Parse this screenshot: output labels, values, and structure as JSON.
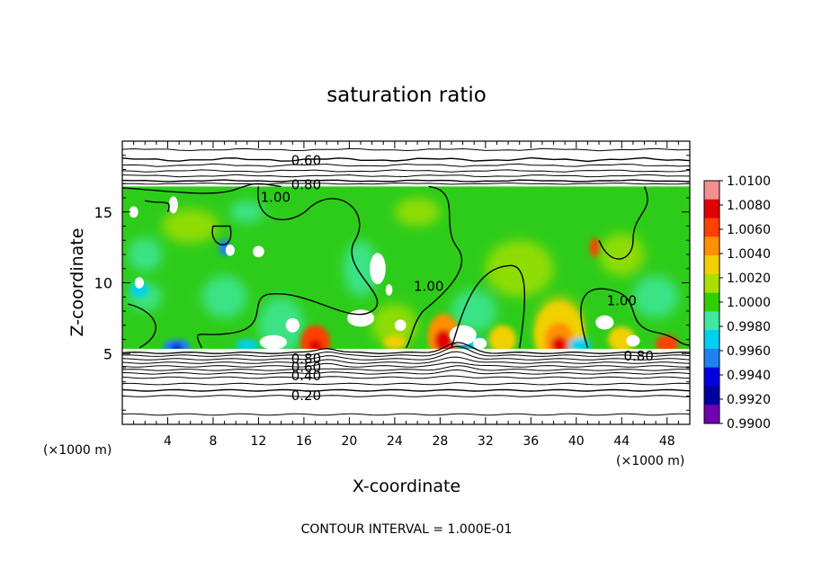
{
  "chart_data": {
    "type": "heatmap",
    "title": "saturation ratio",
    "xlabel": "X-coordinate",
    "ylabel": "Z-coordinate",
    "x_unit_left": "(×1000 m)",
    "x_unit_right": "(×1000 m)",
    "xlim": [
      0,
      50
    ],
    "ylim": [
      0,
      20
    ],
    "x_ticks": [
      4,
      8,
      12,
      16,
      20,
      24,
      28,
      32,
      36,
      40,
      44,
      48
    ],
    "y_ticks": [
      5,
      10,
      15
    ],
    "footer": "CONTOUR INTERVAL = 1.000E-01",
    "colorbar": {
      "min": 0.99,
      "max": 1.01,
      "labels": [
        "1.0100",
        "1.0080",
        "1.0060",
        "1.0040",
        "1.0020",
        "1.0000",
        "0.9980",
        "0.9960",
        "0.9940",
        "0.9920",
        "0.9900"
      ],
      "colors": [
        "#f09090",
        "#e00000",
        "#ff4000",
        "#ff9000",
        "#f0d000",
        "#a8e000",
        "#30d000",
        "#40e8a0",
        "#00d0f0",
        "#2080f0",
        "#0000e0",
        "#0000a0",
        "#7000b0"
      ]
    },
    "field_background": "#2ecc1a",
    "cloud_layer_z": [
      5.3,
      16.8
    ],
    "contour_labels": [
      {
        "text": "0.60",
        "x": 16.2,
        "z": 18.7
      },
      {
        "text": "0.80",
        "x": 16.2,
        "z": 17.0
      },
      {
        "text": "1.00",
        "x": 13.5,
        "z": 16.1
      },
      {
        "text": "1.00",
        "x": 27.0,
        "z": 9.8
      },
      {
        "text": "1.00",
        "x": 44.0,
        "z": 8.8
      },
      {
        "text": "0.80",
        "x": 16.2,
        "z": 4.7
      },
      {
        "text": "0.60",
        "x": 16.2,
        "z": 4.1
      },
      {
        "text": "0.40",
        "x": 16.2,
        "z": 3.5
      },
      {
        "text": "0.20",
        "x": 16.2,
        "z": 2.1
      },
      {
        "text": "0.80",
        "x": 45.5,
        "z": 4.9
      }
    ]
  }
}
